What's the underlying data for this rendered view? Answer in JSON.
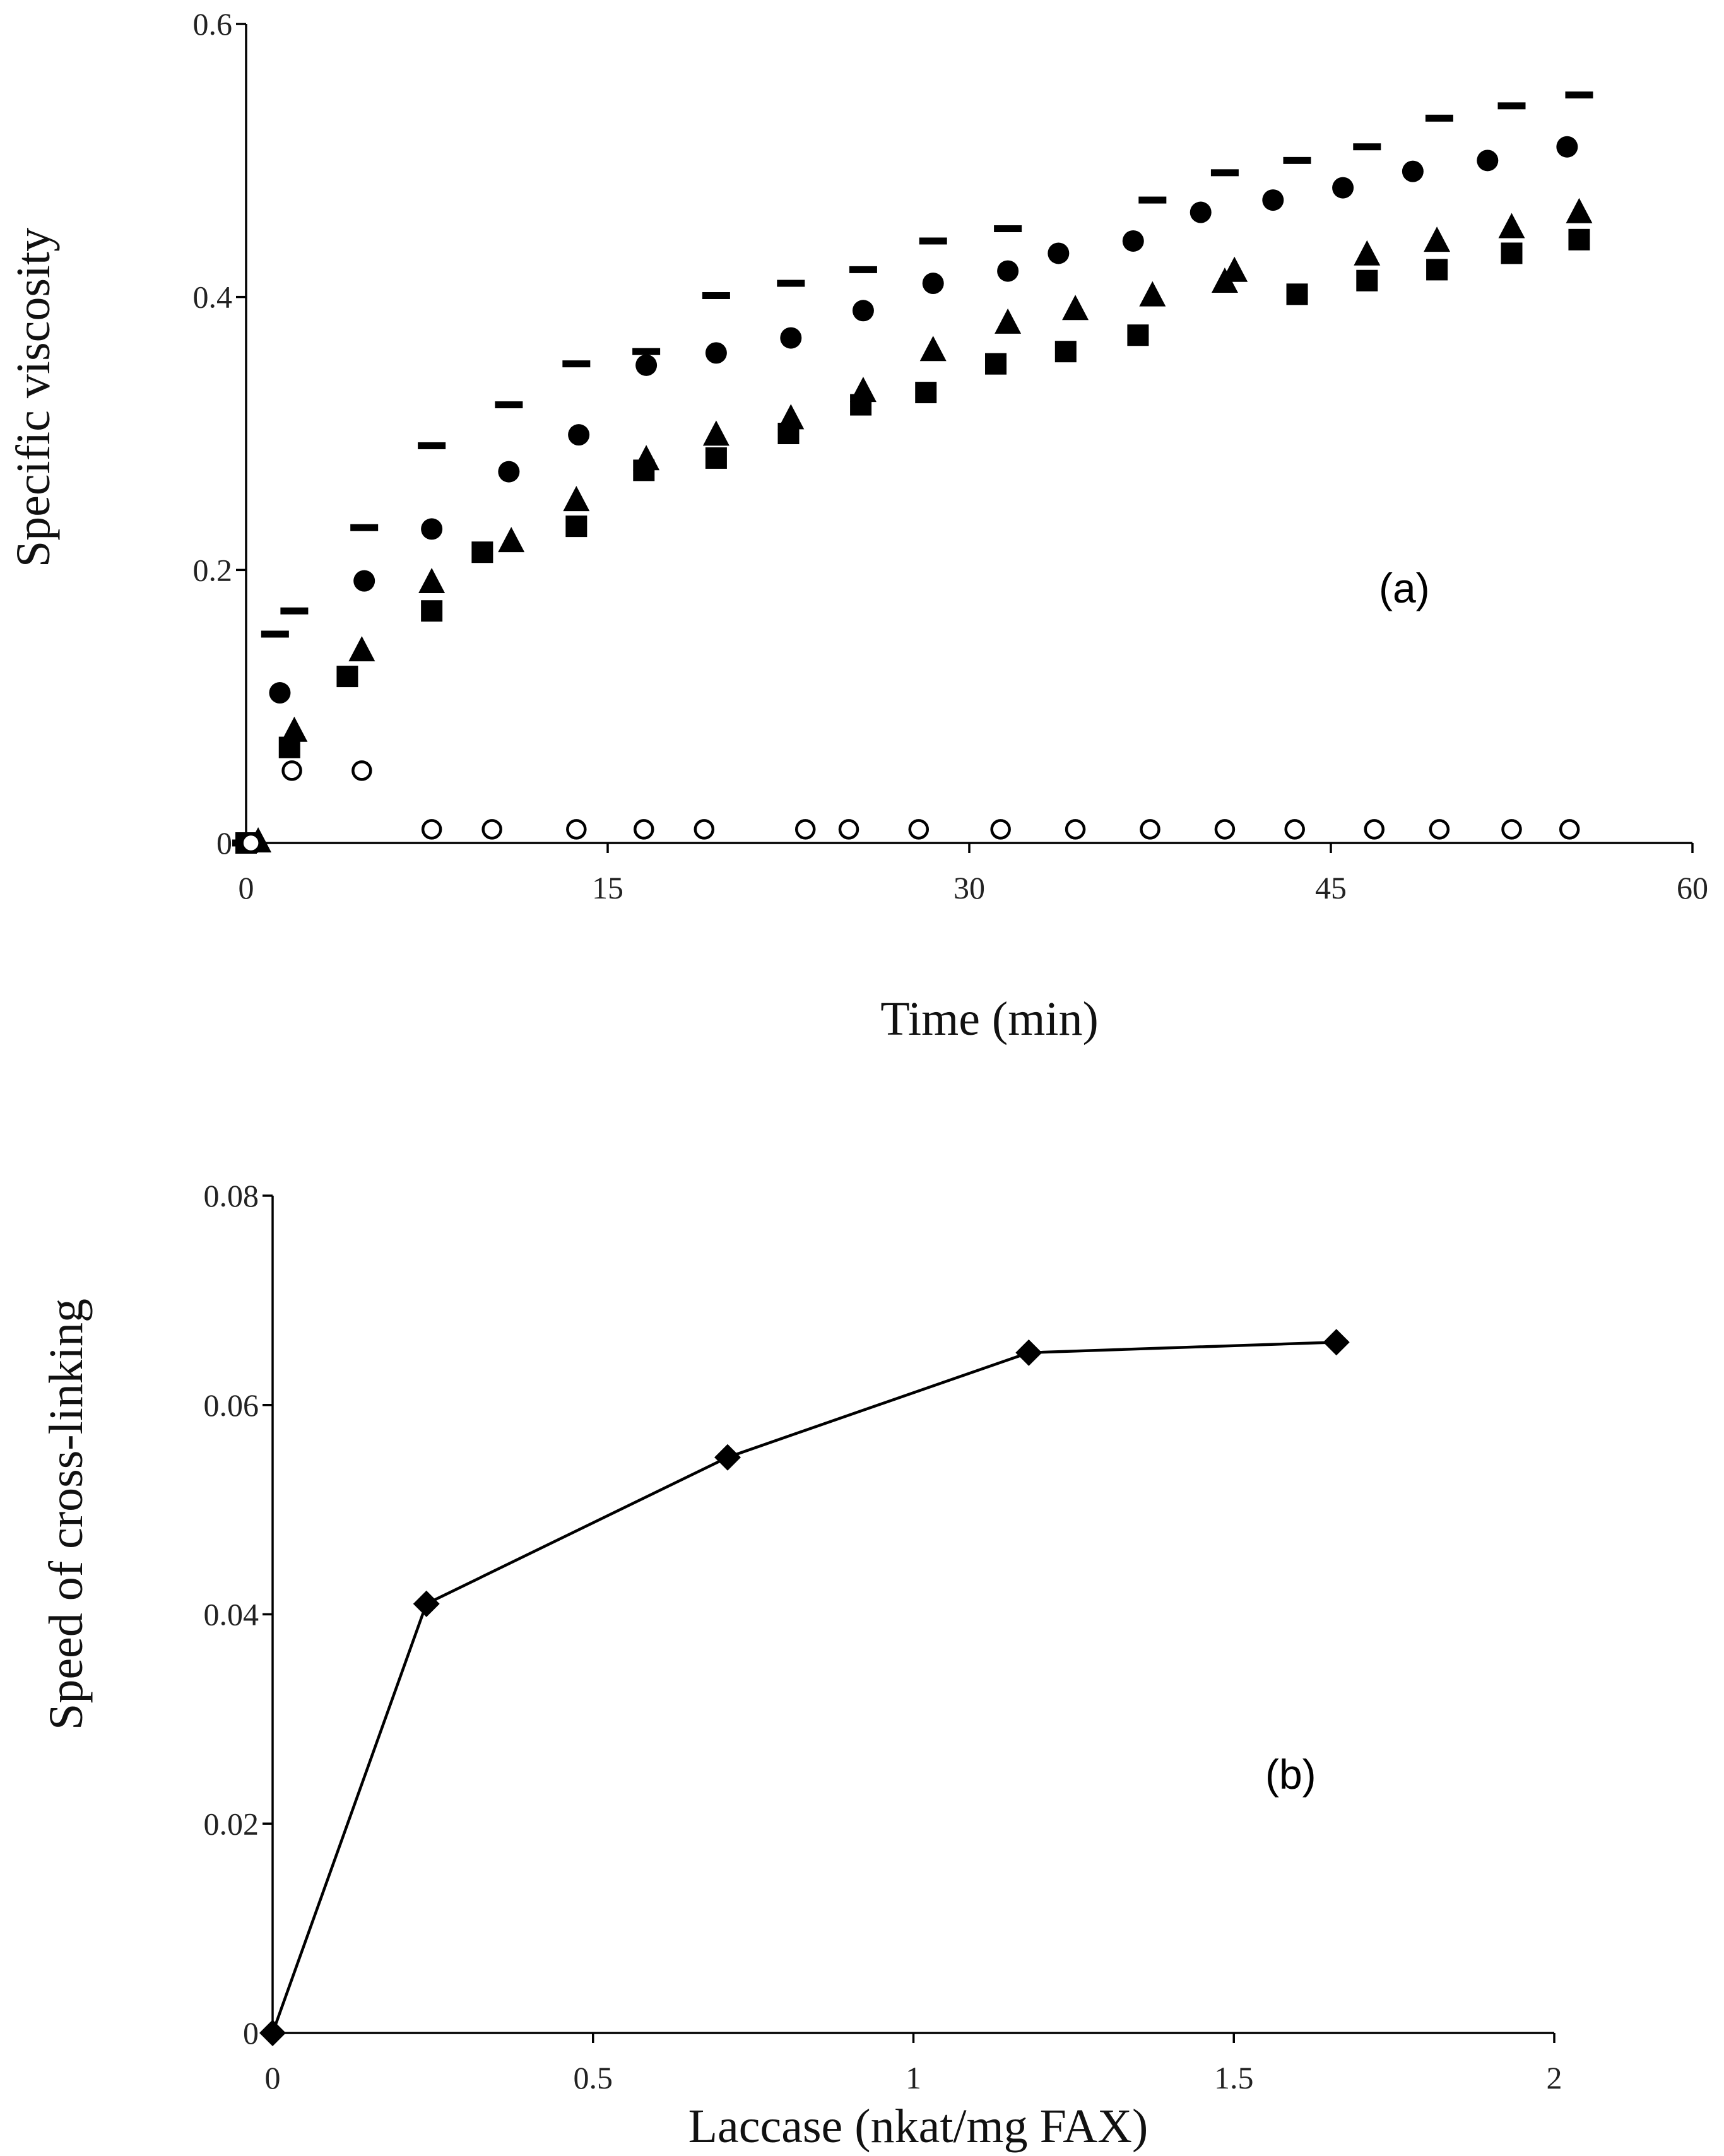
{
  "chart_data": [
    {
      "type": "scatter",
      "panel_label": "(a)",
      "xlabel": "Time (min)",
      "ylabel": "Specific viscosity",
      "xlim": [
        0,
        60
      ],
      "ylim": [
        0,
        0.6
      ],
      "xticks": [
        0,
        15,
        30,
        45,
        60
      ],
      "xtick_labels": [
        "0",
        "15",
        "30",
        "45",
        "60"
      ],
      "yticks": [
        0,
        0.2,
        0.4,
        0.6
      ],
      "ytick_labels": [
        "0",
        "0.2",
        "0.4",
        "0.6"
      ],
      "grid": false,
      "legend": "none",
      "series": [
        {
          "marker": "dash",
          "points": [
            [
              0,
              0
            ],
            [
              1.2,
              0.153
            ],
            [
              2.0,
              0.17
            ],
            [
              4.9,
              0.231
            ],
            [
              7.7,
              0.291
            ],
            [
              10.9,
              0.321
            ],
            [
              13.7,
              0.351
            ],
            [
              16.6,
              0.36
            ],
            [
              19.5,
              0.401
            ],
            [
              22.6,
              0.41
            ],
            [
              25.6,
              0.42
            ],
            [
              28.5,
              0.441
            ],
            [
              31.6,
              0.45
            ],
            [
              37.6,
              0.471
            ],
            [
              40.6,
              0.491
            ],
            [
              43.6,
              0.5
            ],
            [
              46.5,
              0.51
            ],
            [
              49.5,
              0.531
            ],
            [
              52.5,
              0.54
            ],
            [
              55.3,
              0.548
            ]
          ]
        },
        {
          "marker": "filled-circle",
          "points": [
            [
              0.3,
              0
            ],
            [
              1.4,
              0.11
            ],
            [
              4.9,
              0.192
            ],
            [
              7.7,
              0.23
            ],
            [
              10.9,
              0.272
            ],
            [
              13.8,
              0.299
            ],
            [
              16.6,
              0.35
            ],
            [
              19.5,
              0.359
            ],
            [
              22.6,
              0.37
            ],
            [
              25.6,
              0.39
            ],
            [
              28.5,
              0.41
            ],
            [
              31.6,
              0.419
            ],
            [
              33.7,
              0.432
            ],
            [
              36.8,
              0.441
            ],
            [
              39.6,
              0.462
            ],
            [
              42.6,
              0.471
            ],
            [
              45.5,
              0.48
            ],
            [
              48.4,
              0.492
            ],
            [
              51.5,
              0.5
            ],
            [
              54.8,
              0.51
            ]
          ]
        },
        {
          "marker": "filled-triangle",
          "points": [
            [
              0.5,
              0
            ],
            [
              2.0,
              0.081
            ],
            [
              4.8,
              0.14
            ],
            [
              7.7,
              0.19
            ],
            [
              11.0,
              0.22
            ],
            [
              13.7,
              0.25
            ],
            [
              16.6,
              0.28
            ],
            [
              19.5,
              0.298
            ],
            [
              22.6,
              0.31
            ],
            [
              25.6,
              0.33
            ],
            [
              28.5,
              0.36
            ],
            [
              31.6,
              0.38
            ],
            [
              34.4,
              0.39
            ],
            [
              37.6,
              0.4
            ],
            [
              40.6,
              0.41
            ],
            [
              41.0,
              0.418
            ],
            [
              46.5,
              0.43
            ],
            [
              49.4,
              0.44
            ],
            [
              52.5,
              0.45
            ],
            [
              55.3,
              0.461
            ]
          ]
        },
        {
          "marker": "filled-square",
          "points": [
            [
              0,
              0
            ],
            [
              1.8,
              0.07
            ],
            [
              4.2,
              0.122
            ],
            [
              7.7,
              0.17
            ],
            [
              9.8,
              0.213
            ],
            [
              13.7,
              0.232
            ],
            [
              16.5,
              0.273
            ],
            [
              19.5,
              0.282
            ],
            [
              22.5,
              0.3
            ],
            [
              25.5,
              0.321
            ],
            [
              28.2,
              0.33
            ],
            [
              31.1,
              0.351
            ],
            [
              34.0,
              0.36
            ],
            [
              37.0,
              0.372
            ],
            [
              43.6,
              0.402
            ],
            [
              46.5,
              0.412
            ],
            [
              49.4,
              0.42
            ],
            [
              52.5,
              0.432
            ],
            [
              55.3,
              0.442
            ]
          ]
        },
        {
          "marker": "open-circle",
          "points": [
            [
              0.2,
              0
            ],
            [
              1.9,
              0.053
            ],
            [
              4.8,
              0.053
            ],
            [
              7.7,
              0.01
            ],
            [
              10.2,
              0.01
            ],
            [
              13.7,
              0.01
            ],
            [
              16.5,
              0.01
            ],
            [
              19.0,
              0.01
            ],
            [
              23.2,
              0.01
            ],
            [
              25.0,
              0.01
            ],
            [
              27.9,
              0.01
            ],
            [
              31.3,
              0.01
            ],
            [
              34.4,
              0.01
            ],
            [
              37.5,
              0.01
            ],
            [
              40.6,
              0.01
            ],
            [
              43.5,
              0.01
            ],
            [
              46.8,
              0.01
            ],
            [
              49.5,
              0.01
            ],
            [
              52.5,
              0.01
            ],
            [
              54.9,
              0.01
            ]
          ]
        }
      ]
    },
    {
      "type": "line",
      "panel_label": "(b)",
      "xlabel": "Laccase (nkat/mg FAX)",
      "ylabel": "Speed of cross-linking",
      "xlim": [
        0,
        2
      ],
      "ylim": [
        0,
        0.08
      ],
      "xticks": [
        0,
        0.5,
        1,
        1.5,
        2
      ],
      "xtick_labels": [
        "0",
        "0.5",
        "1",
        "1.5",
        "2"
      ],
      "yticks": [
        0,
        0.02,
        0.04,
        0.06,
        0.08
      ],
      "ytick_labels": [
        "0",
        "0.02",
        "0.04",
        "0.06",
        "0.08"
      ],
      "grid": false,
      "legend": "none",
      "series": [
        {
          "marker": "filled-diamond",
          "points": [
            [
              0,
              0
            ],
            [
              0.24,
              0.041
            ],
            [
              0.71,
              0.055
            ],
            [
              1.18,
              0.065
            ],
            [
              1.66,
              0.066
            ]
          ]
        }
      ]
    }
  ]
}
